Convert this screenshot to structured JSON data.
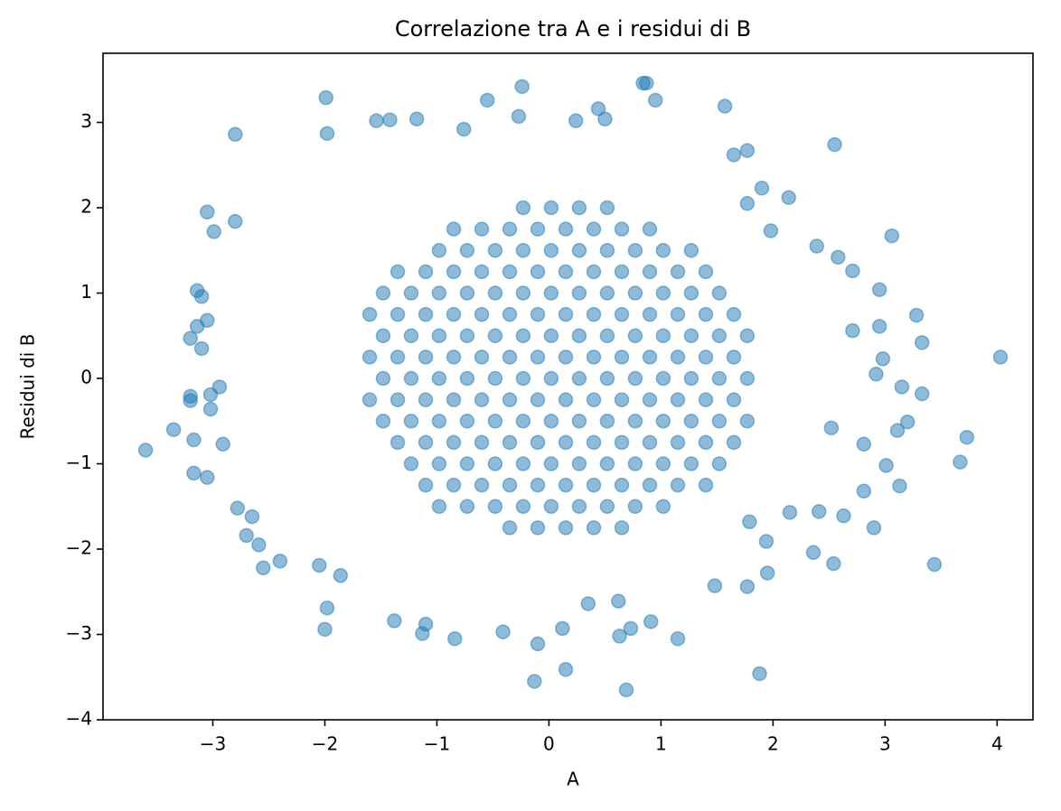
{
  "chart_data": {
    "type": "scatter",
    "title": "Correlazione tra A e i residui di B",
    "xlabel": "A",
    "ylabel": "Residui di B",
    "color": "#1f77b4",
    "xlim": [
      -3.98,
      4.32
    ],
    "ylim": [
      -4.0,
      3.81
    ],
    "xticks": [
      {
        "value": -3,
        "label": "−3"
      },
      {
        "value": -2,
        "label": "−2"
      },
      {
        "value": -1,
        "label": "−1"
      },
      0,
      1,
      2,
      3,
      4
    ],
    "yticks": [
      {
        "value": -4,
        "label": "−4"
      },
      {
        "value": -3,
        "label": "−3"
      },
      {
        "value": -2,
        "label": "−2"
      },
      {
        "value": -1,
        "label": "−1"
      },
      0,
      1,
      2,
      3
    ],
    "x": [
      -0.35,
      -0.1,
      0.15,
      0.4,
      0.65,
      -0.98,
      -0.73,
      -0.48,
      -0.23,
      0.02,
      0.27,
      0.52,
      0.77,
      1.02,
      -1.1,
      -0.85,
      -0.6,
      -0.35,
      -0.1,
      0.15,
      0.4,
      0.65,
      0.9,
      1.15,
      1.4,
      -1.23,
      -0.98,
      -0.73,
      -0.48,
      -0.23,
      0.02,
      0.27,
      0.52,
      0.77,
      1.02,
      1.27,
      1.52,
      -1.35,
      -1.1,
      -0.85,
      -0.6,
      -0.35,
      -0.1,
      0.15,
      0.4,
      0.65,
      0.9,
      1.15,
      1.4,
      1.65,
      -1.48,
      -1.23,
      -0.98,
      -0.73,
      -0.48,
      -0.23,
      0.02,
      0.27,
      0.52,
      0.77,
      1.02,
      1.27,
      1.52,
      1.77,
      -1.6,
      -1.35,
      -1.1,
      -0.85,
      -0.6,
      -0.35,
      -0.1,
      0.15,
      0.4,
      0.65,
      0.9,
      1.15,
      1.4,
      1.65,
      -1.48,
      -1.23,
      -0.98,
      -0.73,
      -0.48,
      -0.23,
      0.02,
      0.27,
      0.52,
      0.77,
      1.02,
      1.27,
      1.52,
      1.77,
      -1.6,
      -1.35,
      -1.1,
      -0.85,
      -0.6,
      -0.35,
      -0.1,
      0.15,
      0.4,
      0.65,
      0.9,
      1.15,
      1.4,
      1.65,
      -1.48,
      -1.23,
      -0.98,
      -0.73,
      -0.48,
      -0.23,
      0.02,
      0.27,
      0.52,
      0.77,
      1.02,
      1.27,
      1.52,
      1.77,
      -1.6,
      -1.35,
      -1.1,
      -0.85,
      -0.6,
      -0.35,
      -0.1,
      0.15,
      0.4,
      0.65,
      0.9,
      1.15,
      1.4,
      1.65,
      -1.48,
      -1.23,
      -0.98,
      -0.73,
      -0.48,
      -0.23,
      0.02,
      0.27,
      0.52,
      0.77,
      1.02,
      1.27,
      1.52,
      -1.35,
      -1.1,
      -0.85,
      -0.6,
      -0.35,
      -0.1,
      0.15,
      0.4,
      0.65,
      0.9,
      1.15,
      1.4,
      -0.98,
      -0.73,
      -0.48,
      -0.23,
      0.02,
      0.27,
      0.52,
      0.77,
      1.02,
      1.27,
      -0.85,
      -0.6,
      -0.35,
      -0.1,
      0.15,
      0.4,
      0.65,
      0.9,
      -0.23,
      0.02,
      0.27,
      0.52,
      -3.6,
      -3.35,
      -2.91,
      -3.05,
      -3.17,
      -3.17,
      -3.2,
      -3.2,
      -3.02,
      -3.02,
      -2.94,
      -3.1,
      -3.14,
      -3.1,
      -3.14,
      -3.05,
      -3.2,
      -2.99,
      -3.05,
      -2.8,
      -2.8,
      -1.99,
      -1.98,
      -1.42,
      -1.54,
      -1.18,
      -0.55,
      -0.24,
      -0.27,
      -0.76,
      0.84,
      0.87,
      0.95,
      0.44,
      0.5,
      0.24,
      1.57,
      2.55,
      1.65,
      1.77,
      4.03,
      3.73,
      3.67,
      3.44,
      3.06,
      3.28,
      3.33,
      3.33,
      3.13,
      2.9,
      2.54,
      2.36,
      1.95,
      1.88,
      1.15,
      0.69,
      0.15,
      -0.13,
      -0.1,
      -0.41,
      -0.84,
      -1.13,
      -1.1,
      -1.38,
      -2.0,
      -1.98,
      -2.05,
      -1.86,
      -2.55,
      -2.4,
      -2.78,
      -2.7,
      -2.65,
      -2.59,
      0.63,
      0.73,
      0.91,
      0.62,
      0.35,
      0.12,
      1.48,
      1.77,
      1.94,
      1.79,
      2.15,
      2.41,
      2.63,
      2.81,
      3.01,
      3.11,
      3.2,
      3.15,
      2.92,
      2.98,
      2.95,
      2.71,
      2.95,
      2.71,
      2.58,
      2.39,
      1.98,
      2.14,
      1.9,
      1.77,
      2.81,
      2.52
    ],
    "values": [
      -1.75,
      -1.75,
      -1.75,
      -1.75,
      -1.75,
      -1.5,
      -1.5,
      -1.5,
      -1.5,
      -1.5,
      -1.5,
      -1.5,
      -1.5,
      -1.5,
      -1.25,
      -1.25,
      -1.25,
      -1.25,
      -1.25,
      -1.25,
      -1.25,
      -1.25,
      -1.25,
      -1.25,
      -1.25,
      -1.0,
      -1.0,
      -1.0,
      -1.0,
      -1.0,
      -1.0,
      -1.0,
      -1.0,
      -1.0,
      -1.0,
      -1.0,
      -1.0,
      -0.75,
      -0.75,
      -0.75,
      -0.75,
      -0.75,
      -0.75,
      -0.75,
      -0.75,
      -0.75,
      -0.75,
      -0.75,
      -0.75,
      -0.75,
      -0.5,
      -0.5,
      -0.5,
      -0.5,
      -0.5,
      -0.5,
      -0.5,
      -0.5,
      -0.5,
      -0.5,
      -0.5,
      -0.5,
      -0.5,
      -0.5,
      -0.25,
      -0.25,
      -0.25,
      -0.25,
      -0.25,
      -0.25,
      -0.25,
      -0.25,
      -0.25,
      -0.25,
      -0.25,
      -0.25,
      -0.25,
      -0.25,
      0.0,
      0.0,
      0.0,
      0.0,
      0.0,
      0.0,
      0.0,
      0.0,
      0.0,
      0.0,
      0.0,
      0.0,
      0.0,
      0.0,
      0.25,
      0.25,
      0.25,
      0.25,
      0.25,
      0.25,
      0.25,
      0.25,
      0.25,
      0.25,
      0.25,
      0.25,
      0.25,
      0.25,
      0.5,
      0.5,
      0.5,
      0.5,
      0.5,
      0.5,
      0.5,
      0.5,
      0.5,
      0.5,
      0.5,
      0.5,
      0.5,
      0.5,
      0.75,
      0.75,
      0.75,
      0.75,
      0.75,
      0.75,
      0.75,
      0.75,
      0.75,
      0.75,
      0.75,
      0.75,
      0.75,
      0.75,
      1.0,
      1.0,
      1.0,
      1.0,
      1.0,
      1.0,
      1.0,
      1.0,
      1.0,
      1.0,
      1.0,
      1.0,
      1.0,
      1.25,
      1.25,
      1.25,
      1.25,
      1.25,
      1.25,
      1.25,
      1.25,
      1.25,
      1.25,
      1.25,
      1.25,
      1.5,
      1.5,
      1.5,
      1.5,
      1.5,
      1.5,
      1.5,
      1.5,
      1.5,
      1.5,
      1.75,
      1.75,
      1.75,
      1.75,
      1.75,
      1.75,
      1.75,
      1.75,
      2.0,
      2.0,
      2.0,
      2.0,
      -0.84,
      -0.6,
      -0.77,
      -1.16,
      -1.11,
      -0.72,
      -0.26,
      -0.21,
      -0.19,
      -0.36,
      -0.1,
      0.35,
      0.61,
      0.96,
      1.03,
      0.68,
      0.47,
      1.72,
      1.95,
      2.86,
      1.84,
      3.29,
      2.87,
      3.03,
      3.02,
      3.04,
      3.26,
      3.42,
      3.07,
      2.92,
      3.46,
      3.46,
      3.26,
      3.16,
      3.04,
      3.02,
      3.19,
      2.74,
      2.62,
      2.67,
      0.25,
      -0.69,
      -0.98,
      -2.18,
      1.67,
      0.74,
      0.42,
      -0.18,
      -1.26,
      -1.75,
      -2.17,
      -2.04,
      -2.28,
      -3.46,
      -3.05,
      -3.65,
      -3.41,
      -3.55,
      -3.11,
      -2.97,
      -3.05,
      -2.99,
      -2.88,
      -2.84,
      -2.94,
      -2.69,
      -2.19,
      -2.31,
      -2.22,
      -2.14,
      -1.52,
      -1.84,
      -1.62,
      -1.95,
      -3.02,
      -2.93,
      -2.85,
      -2.61,
      -2.64,
      -2.93,
      -2.43,
      -2.44,
      -1.91,
      -1.68,
      -1.57,
      -1.56,
      -1.61,
      -1.32,
      -1.02,
      -0.61,
      -0.51,
      -0.1,
      0.05,
      0.23,
      0.61,
      0.56,
      1.04,
      1.26,
      1.42,
      1.55,
      1.73,
      2.12,
      2.23,
      2.05,
      -0.77,
      -0.58
    ]
  }
}
